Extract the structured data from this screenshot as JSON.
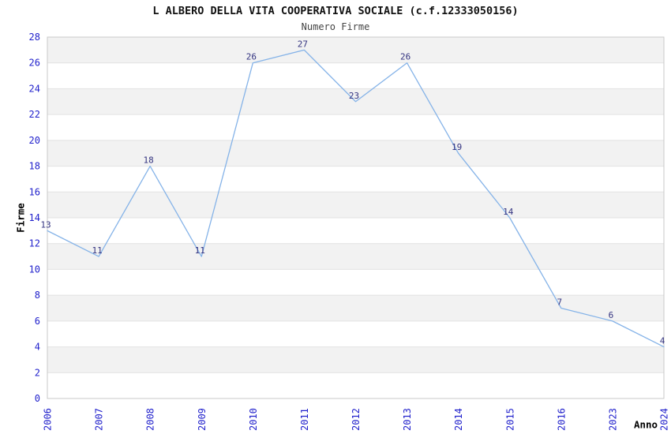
{
  "header": {
    "title": "L ALBERO DELLA VITA COOPERATIVA SOCIALE (c.f.12333050156)",
    "subtitle": "Numero Firme"
  },
  "chart_data": {
    "type": "line",
    "title": "L ALBERO DELLA VITA COOPERATIVA SOCIALE (c.f.12333050156)",
    "subtitle": "Numero Firme",
    "xlabel": "Anno",
    "ylabel": "Firme",
    "categories": [
      "2006",
      "2007",
      "2008",
      "2009",
      "2010",
      "2011",
      "2012",
      "2013",
      "2014",
      "2015",
      "2016",
      "2023",
      "2024"
    ],
    "values": [
      13,
      11,
      18,
      11,
      26,
      27,
      23,
      26,
      19,
      14,
      7,
      6,
      4
    ],
    "ylim": [
      0,
      28
    ],
    "ytick_step": 2,
    "yticks": [
      0,
      2,
      4,
      6,
      8,
      10,
      12,
      14,
      16,
      18,
      20,
      22,
      24,
      26,
      28
    ],
    "grid": "horizontal-alternating-bands",
    "legend_position": "none",
    "point_labels_visible": true,
    "colors": {
      "line": "#85b3e8",
      "tick_label": "#2222cc",
      "point_label": "#333380",
      "band_gray": "#f2f2f2",
      "band_white": "#ffffff",
      "gridline": "#e2e2e2",
      "plot_border": "#c9c9c9",
      "title": "#111111",
      "subtitle": "#444444",
      "axis_title": "#000000"
    }
  }
}
